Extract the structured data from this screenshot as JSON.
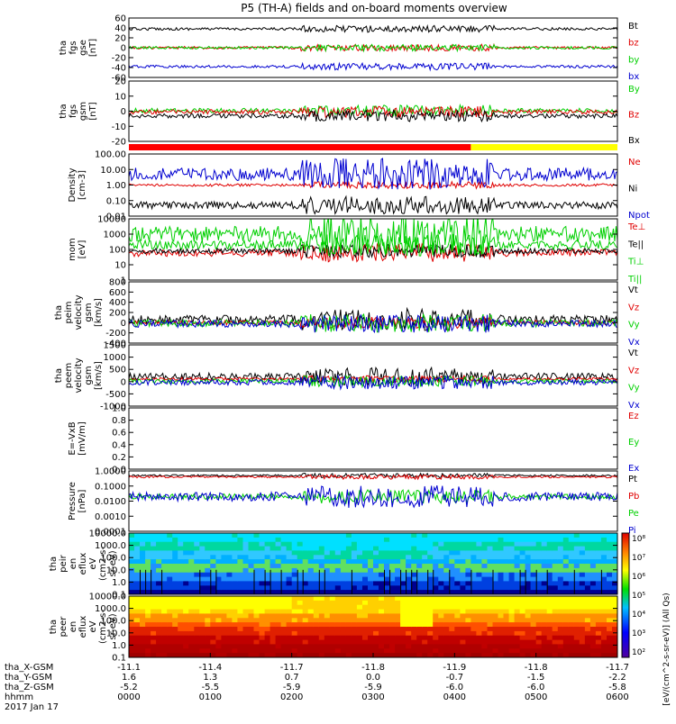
{
  "title": "P5 (TH-A) fields and on-board moments overview",
  "date_label": "2017 Jan 17",
  "orbit_labels": [
    "tha_X-GSM",
    "tha_Y-GSM",
    "tha_Z-GSM",
    "hhmm"
  ],
  "colors": {
    "black": "#000000",
    "red": "#e00000",
    "green": "#00d000",
    "blue": "#0000d0"
  },
  "chart_data": {
    "type": "line",
    "x_ticks": [
      "0000",
      "0100",
      "0200",
      "0300",
      "0400",
      "0500",
      "0600"
    ],
    "x_ephemeris": {
      "X": [
        "-11.1",
        "-11.4",
        "-11.7",
        "-11.8",
        "-11.9",
        "-11.8",
        "-11.7"
      ],
      "Y": [
        "1.6",
        "1.3",
        "0.7",
        "0.0",
        "-0.7",
        "-1.5",
        "-2.2"
      ],
      "Z": [
        "-5.2",
        "-5.5",
        "-5.9",
        "-5.9",
        "-6.0",
        "-6.0",
        "-5.8"
      ]
    },
    "panels": [
      {
        "id": "fgs_gse",
        "ylabel": [
          "tha",
          "fgs",
          "gse",
          "[nT]"
        ],
        "ylim": [
          -60,
          60
        ],
        "ticks": [
          "60",
          "40",
          "20",
          "0",
          "-20",
          "-40",
          "-60"
        ],
        "legend": [
          {
            "name": "Bt",
            "color": "black"
          },
          {
            "name": "bz",
            "color": "red"
          },
          {
            "name": "by",
            "color": "green"
          },
          {
            "name": "bx",
            "color": "blue"
          }
        ]
      },
      {
        "id": "fgs_gsm",
        "ylabel": [
          "tha",
          "fgs",
          "gsm",
          "[nT]"
        ],
        "ylim": [
          -25,
          20
        ],
        "ticks": [
          "20",
          "10",
          "0",
          "-10",
          "-20"
        ],
        "legend": [
          {
            "name": "By",
            "color": "green"
          },
          {
            "name": "Bz",
            "color": "red"
          },
          {
            "name": "Bx",
            "color": "black"
          }
        ]
      },
      {
        "id": "density",
        "ylabel": [
          "Density",
          "[cm-3]"
        ],
        "log": true,
        "ylim": [
          0.01,
          100
        ],
        "ticks": [
          "100.00",
          "10.00",
          "1.00",
          "0.10",
          "0.01"
        ],
        "legend": [
          {
            "name": "Ne",
            "color": "red"
          },
          {
            "name": "Ni",
            "color": "black"
          },
          {
            "name": "Npot",
            "color": "blue"
          }
        ]
      },
      {
        "id": "temperature",
        "ylabel": [
          "mom",
          "[eV]"
        ],
        "log": true,
        "ylim": [
          1,
          10000
        ],
        "ticks": [
          "10000",
          "1000",
          "100",
          "10",
          "1"
        ],
        "legend": [
          {
            "name": "Te⊥",
            "color": "red"
          },
          {
            "name": "Te||",
            "color": "black"
          },
          {
            "name": "Ti⊥",
            "color": "green"
          },
          {
            "name": "Ti||",
            "color": "green"
          }
        ]
      },
      {
        "id": "peim_velocity",
        "ylabel": [
          "tha",
          "peim",
          "velocity",
          "gsm",
          "[km/s]"
        ],
        "ylim": [
          -400,
          800
        ],
        "ticks": [
          "800",
          "600",
          "400",
          "200",
          "0",
          "-200",
          "-400"
        ],
        "legend": [
          {
            "name": "Vt",
            "color": "black"
          },
          {
            "name": "Vz",
            "color": "red"
          },
          {
            "name": "Vy",
            "color": "green"
          },
          {
            "name": "Vx",
            "color": "blue"
          }
        ]
      },
      {
        "id": "peem_velocity",
        "ylabel": [
          "tha",
          "peem",
          "velocity",
          "gsm",
          "[km/s]"
        ],
        "ylim": [
          -1200,
          1500
        ],
        "ticks": [
          "1500",
          "1000",
          "500",
          "0",
          "-500",
          "-1000"
        ],
        "legend": [
          {
            "name": "Vt",
            "color": "black"
          },
          {
            "name": "Vz",
            "color": "red"
          },
          {
            "name": "Vy",
            "color": "green"
          },
          {
            "name": "Vx",
            "color": "blue"
          }
        ]
      },
      {
        "id": "efield",
        "ylabel": [
          "E=-VxB",
          "[mV/m]"
        ],
        "ylim": [
          0,
          1
        ],
        "ticks": [
          "1.0",
          "0.8",
          "0.6",
          "0.4",
          "0.2",
          "0.0"
        ],
        "legend": [
          {
            "name": "Ez",
            "color": "red"
          },
          {
            "name": "Ey",
            "color": "green"
          },
          {
            "name": "Ex",
            "color": "blue"
          }
        ]
      },
      {
        "id": "pressure",
        "ylabel": [
          "Pressure",
          "[nPa]"
        ],
        "log": true,
        "ylim": [
          0.0001,
          1
        ],
        "ticks": [
          "1.0000",
          "0.1000",
          "0.0100",
          "0.0010",
          "0.0001"
        ],
        "legend": [
          {
            "name": "Pt",
            "color": "black"
          },
          {
            "name": "Pb",
            "color": "red"
          },
          {
            "name": "Pe",
            "color": "green"
          },
          {
            "name": "Pi",
            "color": "blue"
          }
        ]
      },
      {
        "id": "peir_spec",
        "ylabel": [
          "tha",
          "peir",
          "en",
          "eflux",
          "eV",
          "(cm2-s-",
          "sr-eV)"
        ],
        "log": true,
        "ylim": [
          0.1,
          10000
        ],
        "ticks": [
          "10000.0",
          "1000.0",
          "100.0",
          "10.0",
          "1.0",
          "0.1"
        ],
        "spectrogram": true
      },
      {
        "id": "peer_spec",
        "ylabel": [
          "tha",
          "peer",
          "en",
          "eflux",
          "eV",
          "(cm2-s-",
          "sr-eV)"
        ],
        "log": true,
        "ylim": [
          0.1,
          10000
        ],
        "ticks": [
          "10000.0",
          "1000.0",
          "100.0",
          "10.0",
          "1.0",
          "0.1"
        ],
        "spectrogram": true
      }
    ],
    "colorbar": {
      "ticks": [
        "10⁸",
        "10⁷",
        "10⁶",
        "10⁵",
        "10⁴",
        "10³",
        "10²"
      ],
      "label": "[eV/(cm^2-s-sr-eV)] (All Qs)"
    }
  }
}
